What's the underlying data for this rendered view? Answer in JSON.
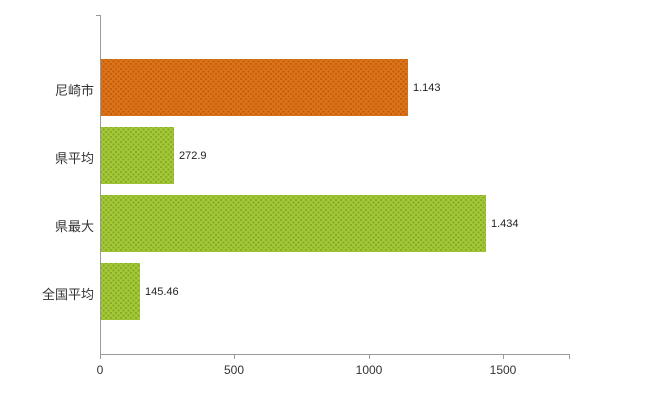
{
  "chart_data": {
    "type": "bar",
    "orientation": "horizontal",
    "title": "",
    "categories": [
      "尼崎市",
      "県平均",
      "県最大",
      "全国平均"
    ],
    "values": [
      1143,
      272.9,
      1434,
      145.46
    ],
    "value_labels": [
      "1.143",
      "272.9",
      "1.434",
      "145.46"
    ],
    "series_colors": [
      "#e17317",
      "#a3cb35",
      "#a3cb35",
      "#a3cb35"
    ],
    "xlim": [
      0,
      1750
    ],
    "x_ticks": [
      "0",
      "500",
      "1000",
      "1500"
    ],
    "x_tick_values": [
      0,
      500,
      1000,
      1500
    ],
    "grid": false,
    "legend": "none",
    "axis_color": "#9a9a9a",
    "text_color": "#333333"
  }
}
